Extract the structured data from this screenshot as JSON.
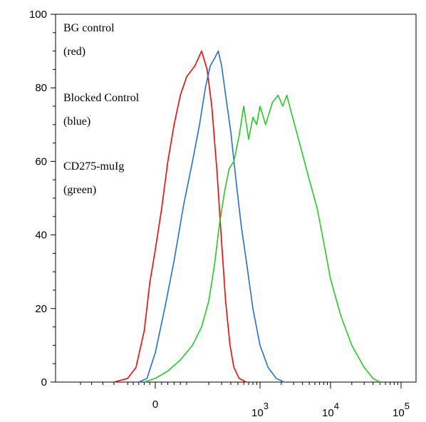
{
  "chart_data": {
    "type": "line",
    "title": "",
    "xlabel": "",
    "ylabel": "",
    "x_scale": "biexponential",
    "ylim": [
      0,
      100
    ],
    "grid": false,
    "x_tick_labels": [
      {
        "value": 0,
        "base": "0",
        "exp": ""
      },
      {
        "value": 1000,
        "base": "10",
        "exp": "3"
      },
      {
        "value": 10000,
        "base": "10",
        "exp": "4"
      },
      {
        "value": 100000,
        "base": "10",
        "exp": "5"
      }
    ],
    "y_ticks": [
      0,
      20,
      40,
      60,
      80,
      100
    ],
    "legend_placement": "top-left",
    "annotations": [
      {
        "lines": [
          "BG control",
          "(red)"
        ]
      },
      {
        "lines": [
          "Blocked Control",
          "(blue)"
        ]
      },
      {
        "lines": [
          "CD275-muIg",
          "(green)"
        ]
      }
    ],
    "series": [
      {
        "color": "#ff0000",
        "points": [
          [
            -150,
            0
          ],
          [
            -100,
            1
          ],
          [
            -70,
            4
          ],
          [
            -40,
            14
          ],
          [
            -20,
            27
          ],
          [
            0,
            36
          ],
          [
            20,
            47
          ],
          [
            40,
            60
          ],
          [
            60,
            70
          ],
          [
            80,
            78
          ],
          [
            100,
            83
          ],
          [
            130,
            86
          ],
          [
            160,
            90
          ],
          [
            190,
            85
          ],
          [
            220,
            75
          ],
          [
            260,
            57
          ],
          [
            300,
            38
          ],
          [
            340,
            22
          ],
          [
            390,
            10
          ],
          [
            440,
            4
          ],
          [
            520,
            1
          ],
          [
            650,
            0
          ]
        ]
      },
      {
        "color": "#1f6fe0",
        "points": [
          [
            -60,
            0
          ],
          [
            -30,
            1
          ],
          [
            0,
            8
          ],
          [
            30,
            20
          ],
          [
            60,
            33
          ],
          [
            90,
            48
          ],
          [
            120,
            60
          ],
          [
            150,
            70
          ],
          [
            180,
            80
          ],
          [
            210,
            86
          ],
          [
            240,
            88
          ],
          [
            270,
            90
          ],
          [
            300,
            86
          ],
          [
            340,
            78
          ],
          [
            400,
            68
          ],
          [
            470,
            55
          ],
          [
            550,
            43
          ],
          [
            650,
            33
          ],
          [
            800,
            20
          ],
          [
            1000,
            10
          ],
          [
            1300,
            4
          ],
          [
            1700,
            1
          ],
          [
            2200,
            0
          ]
        ]
      },
      {
        "color": "#22cc22",
        "points": [
          [
            -40,
            0
          ],
          [
            0,
            1
          ],
          [
            40,
            3
          ],
          [
            80,
            6
          ],
          [
            120,
            10
          ],
          [
            160,
            15
          ],
          [
            200,
            22
          ],
          [
            240,
            32
          ],
          [
            280,
            43
          ],
          [
            330,
            52
          ],
          [
            380,
            58
          ],
          [
            440,
            60
          ],
          [
            520,
            67
          ],
          [
            600,
            75
          ],
          [
            700,
            66
          ],
          [
            800,
            72
          ],
          [
            900,
            70
          ],
          [
            1000,
            75
          ],
          [
            1200,
            70
          ],
          [
            1500,
            76
          ],
          [
            1800,
            78
          ],
          [
            2100,
            75
          ],
          [
            2400,
            78
          ],
          [
            2800,
            73
          ],
          [
            3300,
            68
          ],
          [
            4000,
            62
          ],
          [
            5000,
            55
          ],
          [
            6500,
            47
          ],
          [
            8000,
            38
          ],
          [
            10000,
            28
          ],
          [
            14000,
            18
          ],
          [
            20000,
            10
          ],
          [
            30000,
            4
          ],
          [
            40000,
            1
          ],
          [
            50000,
            0
          ]
        ]
      }
    ]
  }
}
